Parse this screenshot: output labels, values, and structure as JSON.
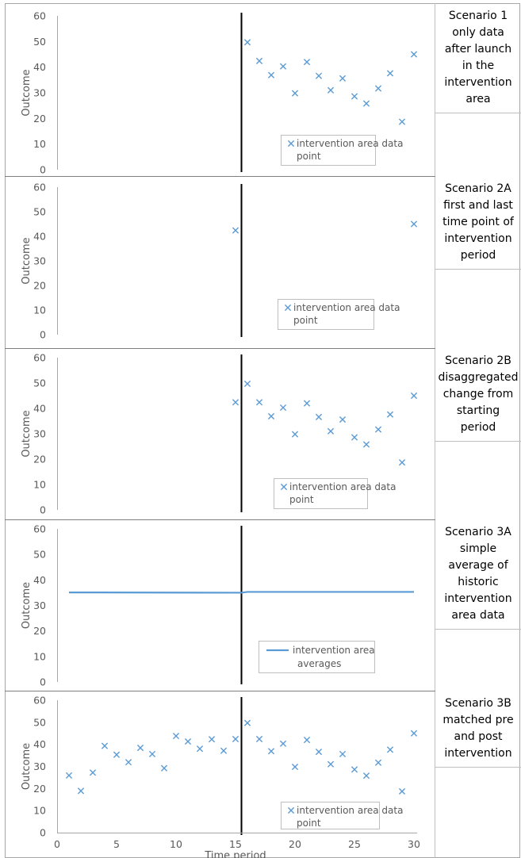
{
  "x_axis_label": "Time period",
  "colors": {
    "marker": "#5b9bd5",
    "launch_line": "#000000",
    "axis": "#a6a6a6",
    "text": "#595959"
  },
  "chart_data": [
    {
      "type": "scatter",
      "caption": [
        "Scenario 1",
        "only data",
        "after launch",
        "in the",
        "intervention",
        "area"
      ],
      "ylabel": "Outcome",
      "ylim": [
        0,
        60
      ],
      "yticks": [
        0,
        10,
        20,
        30,
        40,
        50,
        60
      ],
      "xlim": [
        0,
        30
      ],
      "show_x_ticks": false,
      "launch_x": 15.5,
      "legend_position": "bottom-center",
      "series": [
        {
          "name": "intervention area data point",
          "marker": "x",
          "x": [
            16,
            17,
            18,
            19,
            20,
            21,
            22,
            23,
            24,
            25,
            26,
            27,
            28,
            29,
            30
          ],
          "y": [
            49.7,
            42.4,
            36.9,
            40.3,
            29.8,
            42.0,
            36.6,
            31.0,
            35.6,
            28.6,
            25.8,
            31.7,
            37.6,
            18.7,
            45.0
          ]
        }
      ]
    },
    {
      "type": "scatter",
      "caption": [
        "Scenario 2A",
        "first and last",
        "time point of",
        "intervention",
        "period"
      ],
      "ylabel": "Outcome",
      "ylim": [
        0,
        60
      ],
      "yticks": [
        0,
        10,
        20,
        30,
        40,
        50,
        60
      ],
      "xlim": [
        0,
        30
      ],
      "show_x_ticks": false,
      "launch_x": 15.5,
      "legend_position": "bottom-center",
      "series": [
        {
          "name": "intervention area data point",
          "marker": "x",
          "x": [
            15,
            30
          ],
          "y": [
            42.4,
            45.0
          ]
        }
      ]
    },
    {
      "type": "scatter",
      "caption": [
        "Scenario 2B",
        "disaggregated",
        "change from",
        "starting",
        "period"
      ],
      "ylabel": "Outcome",
      "ylim": [
        0,
        60
      ],
      "yticks": [
        0,
        10,
        20,
        30,
        40,
        50,
        60
      ],
      "xlim": [
        0,
        30
      ],
      "show_x_ticks": false,
      "launch_x": 15.5,
      "legend_position": "bottom-center",
      "series": [
        {
          "name": "intervention area data point",
          "marker": "x",
          "x": [
            15,
            16,
            17,
            18,
            19,
            20,
            21,
            22,
            23,
            24,
            25,
            26,
            27,
            28,
            29,
            30
          ],
          "y": [
            42.4,
            49.7,
            42.4,
            36.9,
            40.3,
            29.8,
            42.0,
            36.6,
            31.0,
            35.6,
            28.6,
            25.8,
            31.7,
            37.6,
            18.7,
            45.0
          ]
        }
      ]
    },
    {
      "type": "line",
      "caption": [
        "Scenario 3A",
        "simple",
        "average of",
        "historic",
        "intervention",
        "area data"
      ],
      "ylabel": "Outcome",
      "ylim": [
        0,
        60
      ],
      "yticks": [
        0,
        10,
        20,
        30,
        40,
        50,
        60
      ],
      "xlim": [
        0,
        30
      ],
      "show_x_ticks": false,
      "launch_x": 15.5,
      "legend_position": "bottom-center",
      "series": [
        {
          "name": "intervention area averages",
          "marker": "line",
          "x": [
            1,
            15.5,
            16,
            30
          ],
          "y": [
            35.1,
            35.0,
            35.3,
            35.3
          ]
        }
      ]
    },
    {
      "type": "scatter",
      "caption": [
        "Scenario 3B",
        "matched pre",
        "and post",
        "intervention"
      ],
      "ylabel": "Outcome",
      "ylim": [
        0,
        60
      ],
      "yticks": [
        0,
        10,
        20,
        30,
        40,
        50,
        60
      ],
      "xlim": [
        0,
        30
      ],
      "xticks": [
        0,
        5,
        10,
        15,
        20,
        25,
        30
      ],
      "show_x_ticks": true,
      "xlabel": "Time period",
      "launch_x": 15.5,
      "legend_position": "bottom-center",
      "series": [
        {
          "name": "intervention area data point",
          "marker": "x",
          "x": [
            1,
            2,
            3,
            4,
            5,
            6,
            7,
            8,
            9,
            10,
            11,
            12,
            13,
            14,
            15,
            16,
            17,
            18,
            19,
            20,
            21,
            22,
            23,
            24,
            25,
            26,
            27,
            28,
            29,
            30
          ],
          "y": [
            25.9,
            18.9,
            27.2,
            39.3,
            35.3,
            31.9,
            38.4,
            35.6,
            29.2,
            43.8,
            41.3,
            38.0,
            42.3,
            37.1,
            42.4,
            49.7,
            42.4,
            36.9,
            40.3,
            29.8,
            42.0,
            36.6,
            31.0,
            35.6,
            28.6,
            25.8,
            31.7,
            37.6,
            18.7,
            45.0
          ]
        }
      ]
    }
  ]
}
